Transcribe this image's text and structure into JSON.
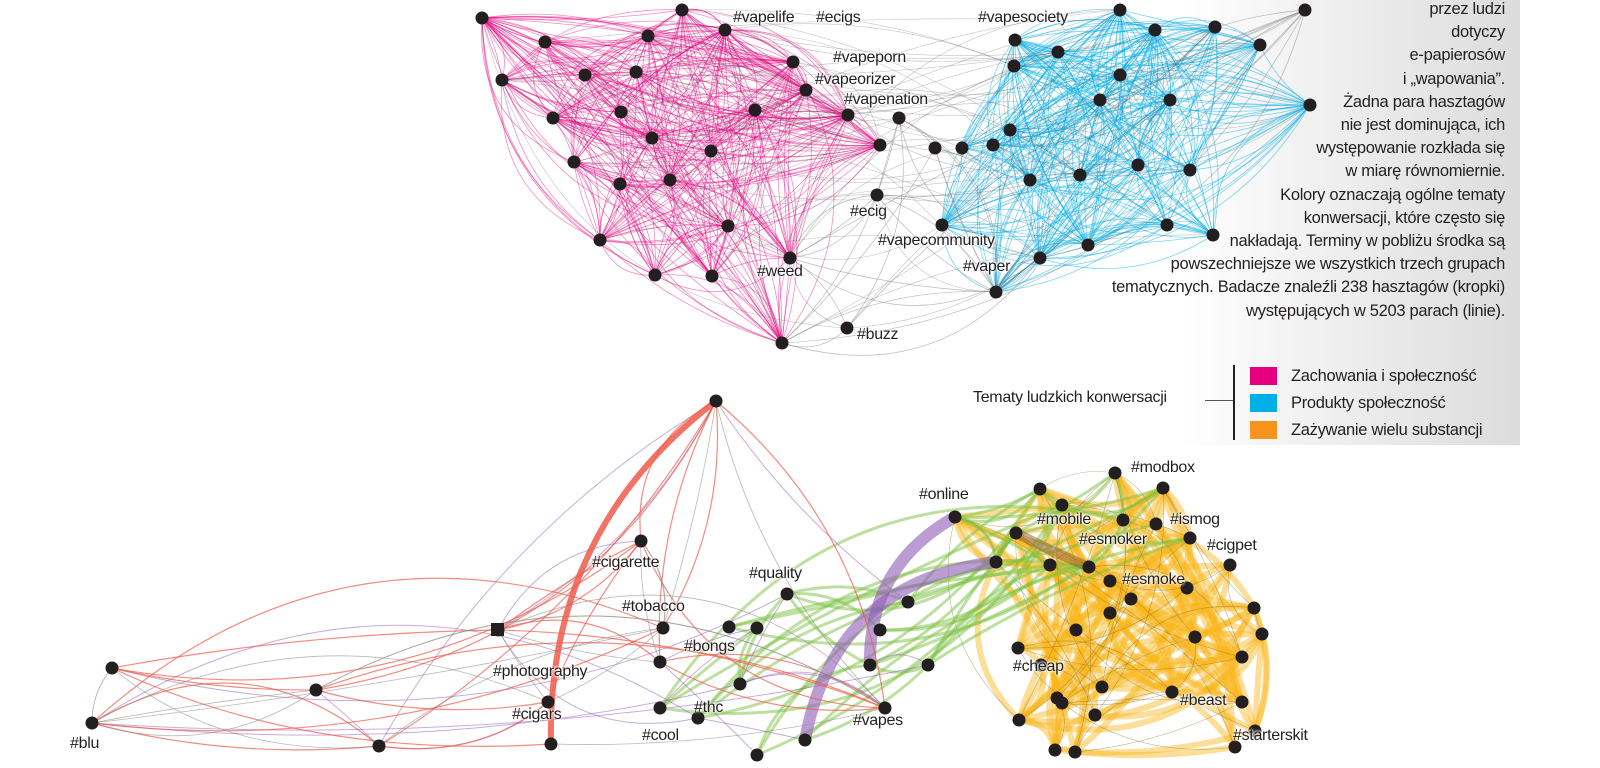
{
  "colors": {
    "behavior_community": "#e5007e",
    "products_community": "#00aee8",
    "multi_substance": "#f7941d",
    "node": "#231f20",
    "bottom_orange_edges": "#f9b51b",
    "bottom_green_edges": "#7cc242",
    "bottom_purple_edges": "#8e5bb8",
    "bottom_red_edges": "#ee5a4a"
  },
  "description_lines": [
    "przez ludzi",
    "dotyczy",
    "e-papierosów",
    "i „wapowania”.",
    "Żadna para hasztagów",
    "nie jest dominująca, ich",
    "występowanie rozkłada się",
    "w miarę równomiernie.",
    "Kolory oznaczają ogólne tematy",
    "konwersacji, które często się",
    "nakładają. Terminy w pobliżu środka są",
    "powszechniejsze we wszystkich trzech grupach",
    "tematycznych. Badacze znaleźli 238 hasztagów (kropki)",
    "występujących  w 5203 parach (linie)."
  ],
  "legend": {
    "title": "Tematy ludzkich konwersacji",
    "items": [
      {
        "label": "Zachowania i społeczność",
        "color": "#e5007e"
      },
      {
        "label": "Produkty społeczność",
        "color": "#00aee8"
      },
      {
        "label": "Zażywanie wielu substancji",
        "color": "#f7941d"
      }
    ]
  },
  "top_network_labels": [
    "#vapelife",
    "#ecigs",
    "#vapesociety",
    "#vapeporn",
    "#vapeorizer",
    "#vapenation",
    "#ecig",
    "#vapecommunity",
    "#weed",
    "#vaper",
    "#buzz"
  ],
  "bottom_network_labels": [
    "#modbox",
    "#online",
    "#mobile",
    "#ismog",
    "#esmoker",
    "#cigpet",
    "#esmoke",
    "#cigarette",
    "#quality",
    "#tobacco",
    "#bongs",
    "#photography",
    "#cheap",
    "#beast",
    "#cigars",
    "#thc",
    "#vapes",
    "#starterskit",
    "#cool",
    "#blu"
  ]
}
